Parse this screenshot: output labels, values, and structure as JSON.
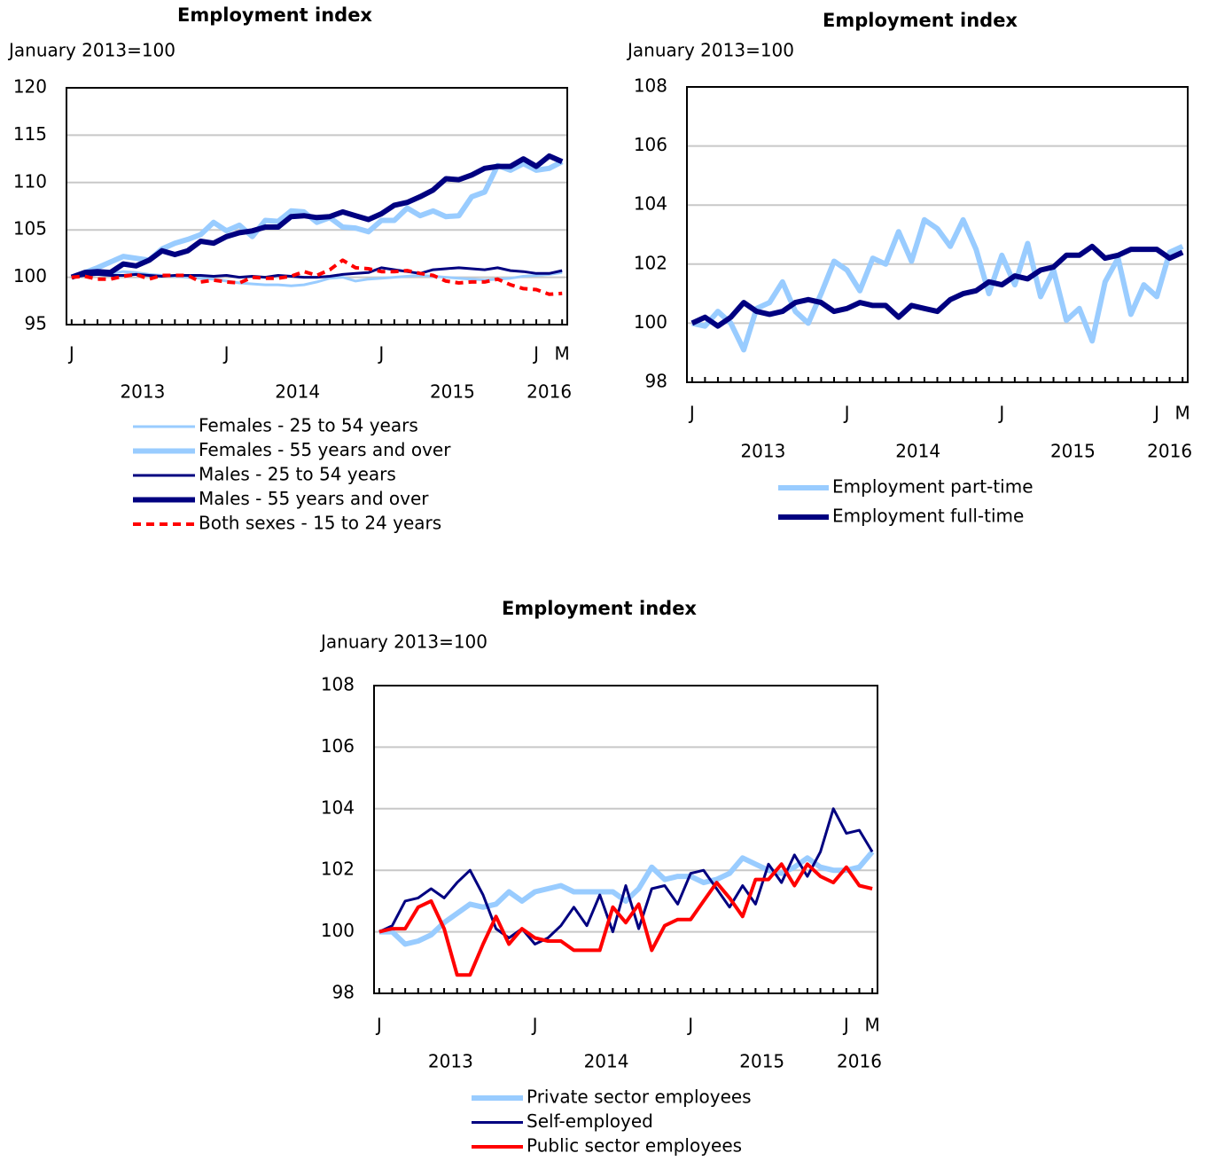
{
  "chart_data": [
    {
      "type": "line",
      "title": "Employment index",
      "subtitle": "January 2013=100",
      "categories": [
        "J",
        null,
        null,
        null,
        null,
        null,
        null,
        null,
        null,
        null,
        null,
        null,
        "J",
        null,
        null,
        null,
        null,
        null,
        null,
        null,
        null,
        null,
        null,
        null,
        "J",
        null,
        null,
        null,
        null,
        null,
        null,
        null,
        null,
        null,
        null,
        null,
        "J",
        null,
        "M"
      ],
      "year_labels": [
        "2013",
        "2014",
        "2015",
        "2016"
      ],
      "ylim": [
        95,
        120
      ],
      "yticks": [
        95,
        100,
        105,
        110,
        115,
        120
      ],
      "grid": true,
      "series": [
        {
          "name": "Females - 25 to 54 years",
          "color": "#99ccff",
          "line_width": 3,
          "dash": false,
          "values": [
            100,
            100.3,
            100.5,
            100.4,
            100.6,
            100.5,
            100.3,
            100.2,
            100.1,
            100.0,
            99.9,
            99.8,
            99.6,
            99.4,
            99.3,
            99.2,
            99.2,
            99.1,
            99.2,
            99.5,
            99.9,
            100.0,
            99.6,
            99.8,
            99.9,
            100.0,
            100.1,
            100.2,
            100.1,
            100.0,
            99.9,
            99.8,
            99.7,
            99.8,
            99.9,
            100.1,
            100.2,
            100.3,
            100.5
          ]
        },
        {
          "name": "Females - 55 years and over",
          "color": "#99ccff",
          "line_width": 6,
          "dash": false,
          "values": [
            100,
            100.5,
            101,
            101.6,
            102.2,
            102,
            101.8,
            103,
            103.6,
            104,
            104.5,
            105.8,
            104.9,
            105.5,
            104.3,
            106,
            105.9,
            107,
            106.9,
            105.8,
            106.3,
            105.3,
            105.2,
            104.8,
            106,
            106,
            107.3,
            106.5,
            107,
            106.4,
            106.5,
            108.5,
            109,
            111.8,
            111.3,
            112,
            111.3,
            111.5,
            112.2
          ]
        },
        {
          "name": "Males - 25 to 54 years",
          "color": "#000080",
          "line_width": 3,
          "dash": false,
          "values": [
            100,
            100.2,
            100.3,
            100.2,
            100.2,
            100.3,
            100.2,
            100.1,
            100.2,
            100.2,
            100.2,
            100.1,
            100.2,
            100.0,
            100.1,
            100.0,
            100.2,
            100.1,
            100.0,
            100.0,
            100.1,
            100.3,
            100.4,
            100.5,
            101.0,
            100.8,
            100.6,
            100.4,
            100.8,
            100.9,
            101.0,
            100.9,
            100.8,
            101.0,
            100.7,
            100.6,
            100.4,
            100.4,
            100.7
          ]
        },
        {
          "name": "Males - 55 years and over",
          "color": "#000080",
          "line_width": 6,
          "dash": false,
          "values": [
            100,
            100.5,
            100.6,
            100.5,
            101.4,
            101.2,
            101.8,
            102.8,
            102.4,
            102.8,
            103.8,
            103.6,
            104.3,
            104.7,
            104.9,
            105.3,
            105.3,
            106.4,
            106.5,
            106.3,
            106.4,
            106.9,
            106.5,
            106.1,
            106.7,
            107.6,
            107.9,
            108.5,
            109.2,
            110.4,
            110.3,
            110.8,
            111.5,
            111.7,
            111.7,
            112.5,
            111.7,
            112.8,
            112.2
          ]
        },
        {
          "name": "Both sexes - 15 to 24 years",
          "color": "#ff0000",
          "line_width": 4,
          "dash": true,
          "values": [
            100,
            100.1,
            99.8,
            99.8,
            100.1,
            100.3,
            99.8,
            100.2,
            100.2,
            100.2,
            99.5,
            99.7,
            99.5,
            99.4,
            100.0,
            99.9,
            99.9,
            100.1,
            100.6,
            100.2,
            100.8,
            101.8,
            101.0,
            100.9,
            100.6,
            100.6,
            100.7,
            100.4,
            100.2,
            99.6,
            99.4,
            99.5,
            99.5,
            99.8,
            99.2,
            98.8,
            98.7,
            98.2,
            98.3
          ]
        }
      ]
    },
    {
      "type": "line",
      "title": "Employment index",
      "subtitle": "January 2013=100",
      "categories": [
        "J",
        null,
        null,
        null,
        null,
        null,
        null,
        null,
        null,
        null,
        null,
        null,
        "J",
        null,
        null,
        null,
        null,
        null,
        null,
        null,
        null,
        null,
        null,
        null,
        "J",
        null,
        null,
        null,
        null,
        null,
        null,
        null,
        null,
        null,
        null,
        null,
        "J",
        null,
        "M"
      ],
      "year_labels": [
        "2013",
        "2014",
        "2015",
        "2016"
      ],
      "ylim": [
        98,
        108
      ],
      "yticks": [
        98,
        100,
        102,
        104,
        106,
        108
      ],
      "grid": true,
      "series": [
        {
          "name": "Employment part-time",
          "color": "#99ccff",
          "line_width": 6,
          "dash": false,
          "values": [
            100,
            99.9,
            100.4,
            100,
            99.1,
            100.5,
            100.7,
            101.4,
            100.4,
            100,
            101,
            102.1,
            101.8,
            101.1,
            102.2,
            102,
            103.1,
            102.1,
            103.5,
            103.2,
            102.6,
            103.5,
            102.5,
            101,
            102.3,
            101.3,
            102.7,
            100.9,
            101.8,
            100.1,
            100.5,
            99.4,
            101.4,
            102.2,
            100.3,
            101.3,
            100.9,
            102.4,
            102.6
          ]
        },
        {
          "name": "Employment full-time",
          "color": "#000080",
          "line_width": 6,
          "dash": false,
          "values": [
            100,
            100.2,
            99.9,
            100.2,
            100.7,
            100.4,
            100.3,
            100.4,
            100.7,
            100.8,
            100.7,
            100.4,
            100.5,
            100.7,
            100.6,
            100.6,
            100.2,
            100.6,
            100.5,
            100.4,
            100.8,
            101,
            101.1,
            101.4,
            101.3,
            101.6,
            101.5,
            101.8,
            101.9,
            102.3,
            102.3,
            102.6,
            102.2,
            102.3,
            102.5,
            102.5,
            102.5,
            102.2,
            102.4
          ]
        }
      ]
    },
    {
      "type": "line",
      "title": "Employment index",
      "subtitle": "January 2013=100",
      "categories": [
        "J",
        null,
        null,
        null,
        null,
        null,
        null,
        null,
        null,
        null,
        null,
        null,
        "J",
        null,
        null,
        null,
        null,
        null,
        null,
        null,
        null,
        null,
        null,
        null,
        "J",
        null,
        null,
        null,
        null,
        null,
        null,
        null,
        null,
        null,
        null,
        null,
        "J",
        null,
        "M"
      ],
      "year_labels": [
        "2013",
        "2014",
        "2015",
        "2016"
      ],
      "ylim": [
        98,
        108
      ],
      "yticks": [
        98,
        100,
        102,
        104,
        106,
        108
      ],
      "grid": true,
      "series": [
        {
          "name": "Private sector employees",
          "color": "#99ccff",
          "line_width": 6,
          "dash": false,
          "values": [
            100,
            100,
            99.6,
            99.7,
            99.9,
            100.3,
            100.6,
            100.9,
            100.8,
            100.9,
            101.3,
            101,
            101.3,
            101.4,
            101.5,
            101.3,
            101.3,
            101.3,
            101.3,
            101,
            101.4,
            102.1,
            101.7,
            101.8,
            101.8,
            101.6,
            101.7,
            101.9,
            102.4,
            102.2,
            102.0,
            101.9,
            102.1,
            102.4,
            102.1,
            102.0,
            102.0,
            102.1,
            102.6
          ]
        },
        {
          "name": "Self-employed",
          "color": "#000080",
          "line_width": 3,
          "dash": false,
          "values": [
            100,
            100.2,
            101,
            101.1,
            101.4,
            101.1,
            101.6,
            102,
            101.2,
            100.1,
            99.8,
            100.1,
            99.6,
            99.8,
            100.2,
            100.8,
            100.2,
            101.2,
            100,
            101.5,
            100.1,
            101.4,
            101.5,
            100.9,
            101.9,
            102,
            101.4,
            100.8,
            101.5,
            100.9,
            102.2,
            101.6,
            102.5,
            101.8,
            102.6,
            104,
            103.2,
            103.3,
            102.6
          ]
        },
        {
          "name": "Public sector employees",
          "color": "#ff0000",
          "line_width": 4,
          "dash": false,
          "values": [
            100,
            100.1,
            100.1,
            100.8,
            101,
            100.1,
            98.6,
            98.6,
            99.6,
            100.5,
            99.6,
            100.1,
            99.8,
            99.7,
            99.7,
            99.4,
            99.4,
            99.4,
            100.8,
            100.3,
            100.9,
            99.4,
            100.2,
            100.4,
            100.4,
            101,
            101.6,
            101.1,
            100.5,
            101.7,
            101.7,
            102.2,
            101.5,
            102.2,
            101.8,
            101.6,
            102.1,
            101.5,
            101.4
          ]
        }
      ]
    }
  ]
}
